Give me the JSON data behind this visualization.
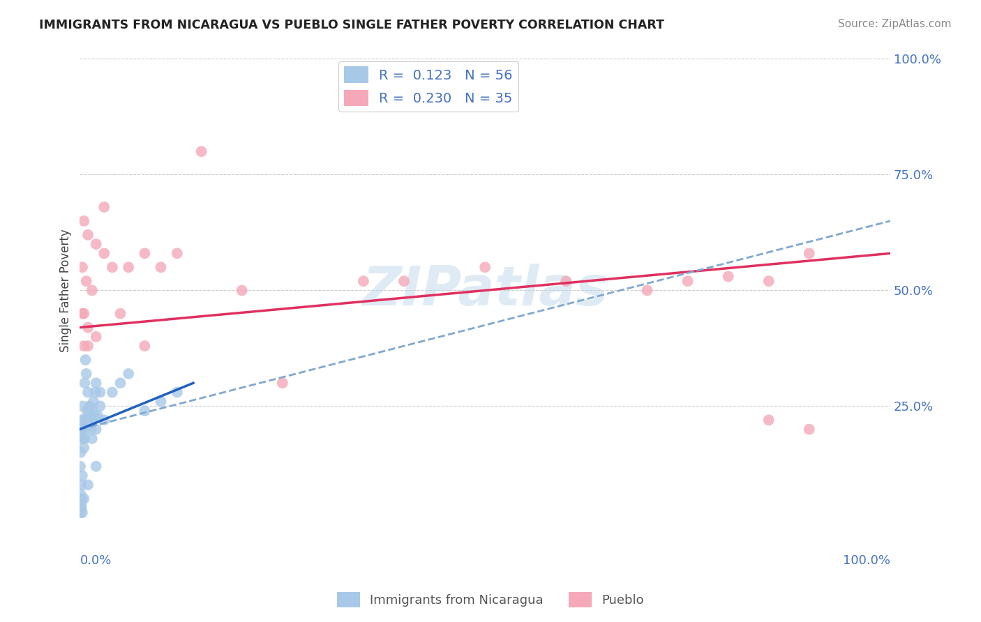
{
  "title": "IMMIGRANTS FROM NICARAGUA VS PUEBLO SINGLE FATHER POVERTY CORRELATION CHART",
  "source": "Source: ZipAtlas.com",
  "ylabel": "Single Father Poverty",
  "xlim": [
    0,
    100
  ],
  "ylim": [
    0,
    100
  ],
  "legend_label1": "R =  0.123   N = 56",
  "legend_label2": "R =  0.230   N = 35",
  "watermark": "ZIPatlas",
  "blue_color": "#a8c8e8",
  "pink_color": "#f4a8b8",
  "blue_line_color": "#2060c0",
  "pink_line_color": "#e03060",
  "dashed_line_color": "#80a8d0",
  "title_color": "#222222",
  "source_color": "#888888",
  "label_color": "#4472c4",
  "grid_color": "#cccccc",
  "blue_scatter_x": [
    0.2,
    0.3,
    0.4,
    0.5,
    0.6,
    0.7,
    0.8,
    0.9,
    1.0,
    1.1,
    1.2,
    1.3,
    1.4,
    1.5,
    1.6,
    1.7,
    1.8,
    1.9,
    2.0,
    2.2,
    2.5,
    3.0,
    4.0,
    5.0,
    6.0,
    8.0,
    10.0,
    12.0,
    0.05,
    0.1,
    0.15,
    0.2,
    0.25,
    0.3,
    0.05,
    0.1,
    0.2,
    0.3,
    0.4,
    0.5,
    0.6,
    0.7,
    0.8,
    1.0,
    1.2,
    1.5,
    2.0,
    2.5,
    0.05,
    0.1,
    0.15,
    0.2,
    0.3,
    0.5,
    1.0,
    2.0
  ],
  "blue_scatter_y": [
    22,
    20,
    18,
    16,
    18,
    20,
    22,
    24,
    23,
    21,
    25,
    22,
    20,
    18,
    24,
    26,
    23,
    28,
    20,
    23,
    25,
    22,
    28,
    30,
    32,
    24,
    26,
    28,
    5,
    6,
    4,
    8,
    5,
    10,
    12,
    15,
    20,
    25,
    18,
    22,
    30,
    35,
    32,
    28,
    25,
    22,
    30,
    28,
    2,
    3,
    4,
    3,
    2,
    5,
    8,
    12
  ],
  "pink_scatter_x": [
    0.5,
    1.0,
    2.0,
    3.0,
    0.3,
    0.8,
    1.5,
    4.0,
    6.0,
    8.0,
    10.0,
    12.0,
    0.5,
    1.0,
    2.0,
    5.0,
    20.0,
    35.0,
    40.0,
    50.0,
    60.0,
    70.0,
    75.0,
    80.0,
    85.0,
    90.0,
    15.0,
    3.0,
    0.3,
    0.5,
    1.0,
    8.0,
    25.0,
    85.0,
    90.0
  ],
  "pink_scatter_y": [
    65,
    62,
    60,
    58,
    55,
    52,
    50,
    55,
    55,
    58,
    55,
    58,
    45,
    42,
    40,
    45,
    50,
    52,
    52,
    55,
    52,
    50,
    52,
    53,
    52,
    58,
    80,
    68,
    45,
    38,
    38,
    38,
    30,
    22,
    20
  ],
  "pink_line_x0": 0,
  "pink_line_y0": 42,
  "pink_line_x1": 100,
  "pink_line_y1": 58,
  "dashed_line_x0": 0,
  "dashed_line_y0": 20,
  "dashed_line_x1": 100,
  "dashed_line_y1": 65,
  "blue_line_x0": 0,
  "blue_line_y0": 20,
  "blue_line_x1": 14,
  "blue_line_y1": 30
}
